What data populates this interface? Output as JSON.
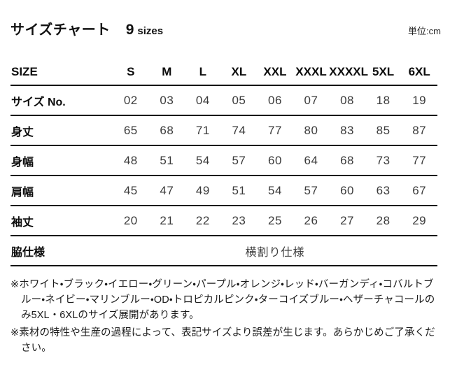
{
  "header": {
    "title": "サイズチャート",
    "sizes_count": "9",
    "sizes_suffix": "sizes",
    "unit_label": "単位:cm"
  },
  "chart_data": {
    "type": "table",
    "title": "サイズチャート 9 sizes",
    "unit": "cm",
    "columns": [
      "SIZE",
      "S",
      "M",
      "L",
      "XL",
      "XXL",
      "XXXL",
      "XXXXL",
      "5XL",
      "6XL"
    ],
    "rows": [
      {
        "label": "サイズ No.",
        "values": [
          "02",
          "03",
          "04",
          "05",
          "06",
          "07",
          "08",
          "18",
          "19"
        ]
      },
      {
        "label": "身丈",
        "values": [
          "65",
          "68",
          "71",
          "74",
          "77",
          "80",
          "83",
          "85",
          "87"
        ]
      },
      {
        "label": "身幅",
        "values": [
          "48",
          "51",
          "54",
          "57",
          "60",
          "64",
          "68",
          "73",
          "77"
        ]
      },
      {
        "label": "肩幅",
        "values": [
          "45",
          "47",
          "49",
          "51",
          "54",
          "57",
          "60",
          "63",
          "67"
        ]
      },
      {
        "label": "袖丈",
        "values": [
          "20",
          "21",
          "22",
          "23",
          "25",
          "26",
          "27",
          "28",
          "29"
        ]
      },
      {
        "label": "脇仕様",
        "span_value": "横割り仕様"
      }
    ]
  },
  "notes": [
    "※ホワイト・ブラック・イエロー・グリーン・パープル・オレンジ・レッド・バーガンディ・コバルトブルー・ネイビー・マリンブルー・OD・トロピカルピンク・ターコイズブルー・ヘザーチャコールのみ5XL・6XLのサイズ展開があります。",
    "※素材の特性や生産の過程によって、表記サイズより誤差が生じます。あらかじめご了承ください。"
  ],
  "colors": {
    "background": "#ffffff",
    "text": "#111111",
    "rule_line": "#131313"
  }
}
